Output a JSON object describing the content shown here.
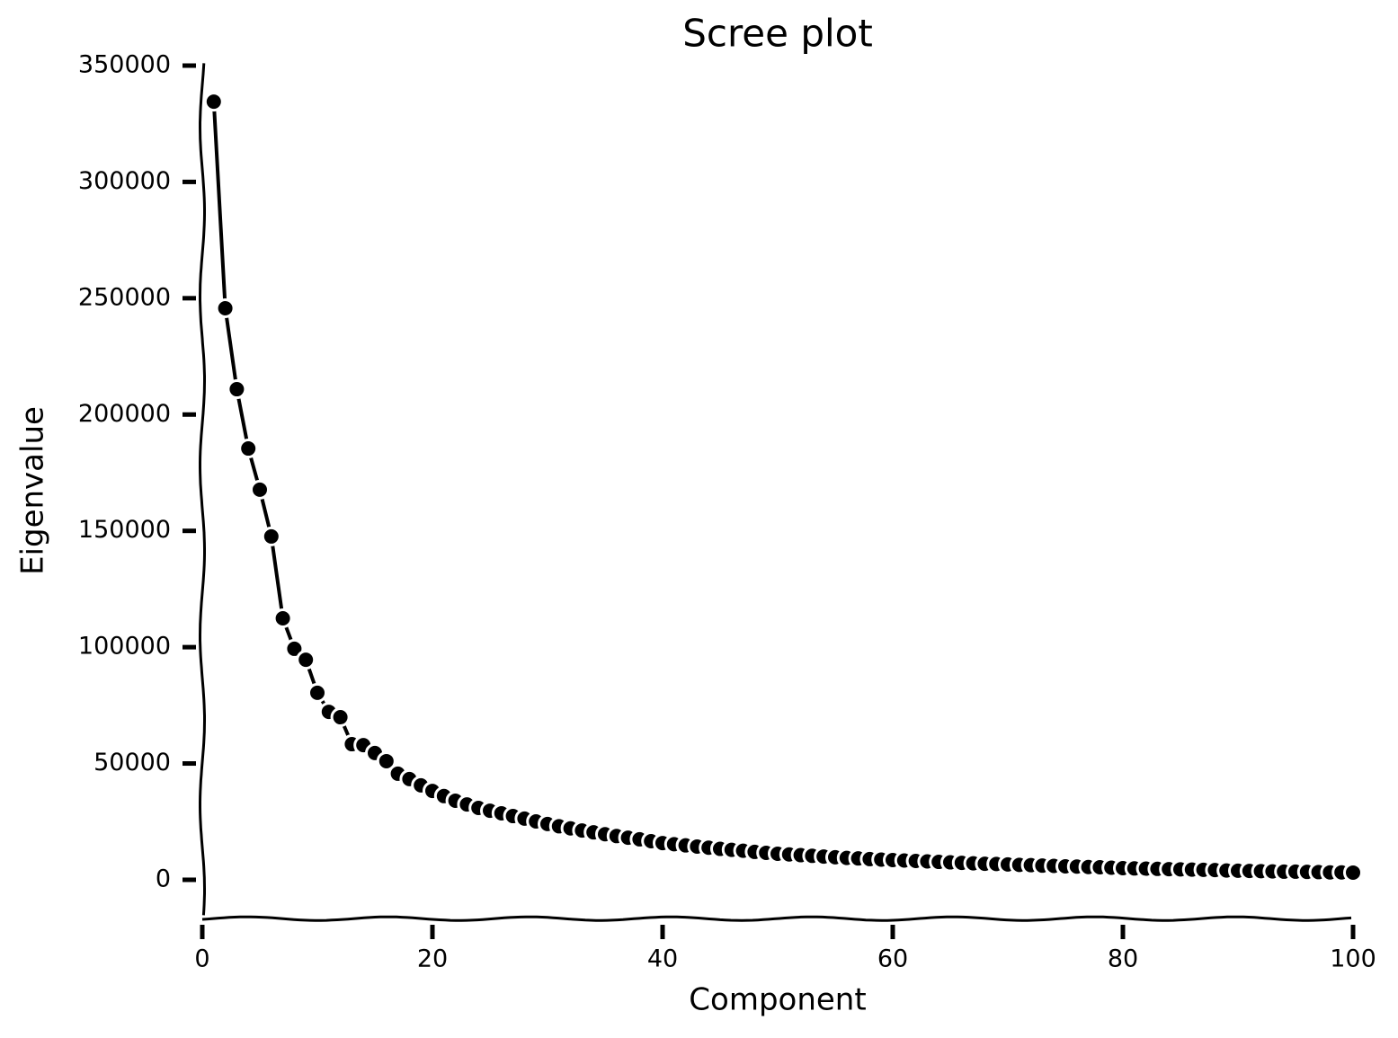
{
  "chart_data": {
    "type": "line",
    "title": "Scree plot",
    "x_label": "Component",
    "y_label": "Eigenvalue",
    "x": [
      1,
      2,
      3,
      4,
      5,
      6,
      7,
      8,
      9,
      10,
      11,
      12,
      13,
      14,
      15,
      16,
      17,
      18,
      19,
      20,
      21,
      22,
      23,
      24,
      25,
      26,
      27,
      28,
      29,
      30,
      31,
      32,
      33,
      34,
      35,
      36,
      37,
      38,
      39,
      40,
      41,
      42,
      43,
      44,
      45,
      46,
      47,
      48,
      49,
      50,
      51,
      52,
      53,
      54,
      55,
      56,
      57,
      58,
      59,
      60,
      61,
      62,
      63,
      64,
      65,
      66,
      67,
      68,
      69,
      70,
      71,
      72,
      73,
      74,
      75,
      76,
      77,
      78,
      79,
      80,
      81,
      82,
      83,
      84,
      85,
      86,
      87,
      88,
      89,
      90,
      91,
      92,
      93,
      94,
      95,
      96,
      97,
      98,
      99,
      100
    ],
    "series": [
      {
        "color": "#000000",
        "values": [
          334500,
          245700,
          210900,
          185400,
          167700,
          147600,
          112400,
          99300,
          94600,
          80400,
          72200,
          69900,
          58300,
          57900,
          54500,
          51000,
          45600,
          43300,
          40600,
          38200,
          36000,
          34000,
          32400,
          30900,
          29700,
          28600,
          27400,
          26300,
          25100,
          24000,
          23000,
          22100,
          21200,
          20400,
          19600,
          18800,
          18100,
          17400,
          16600,
          15800,
          15300,
          14800,
          14300,
          13800,
          13300,
          12900,
          12500,
          12000,
          11600,
          11200,
          10900,
          10600,
          10300,
          10000,
          9700,
          9400,
          9200,
          8900,
          8700,
          8500,
          8300,
          8100,
          7900,
          7700,
          7500,
          7300,
          7100,
          6900,
          6800,
          6600,
          6400,
          6300,
          6100,
          6000,
          5800,
          5700,
          5500,
          5400,
          5200,
          5000,
          4900,
          4800,
          4700,
          4600,
          4500,
          4400,
          4300,
          4200,
          4000,
          3900,
          3800,
          3700,
          3600,
          3500,
          3500,
          3400,
          3300,
          3200,
          3200,
          3100
        ]
      }
    ],
    "xlim": [
      0,
      100
    ],
    "xticks": [
      0,
      20,
      40,
      60,
      80,
      100
    ],
    "ylim": [
      -16700,
      351000
    ],
    "yticks": [
      0,
      50000,
      100000,
      150000,
      200000,
      250000,
      300000,
      350000
    ]
  }
}
